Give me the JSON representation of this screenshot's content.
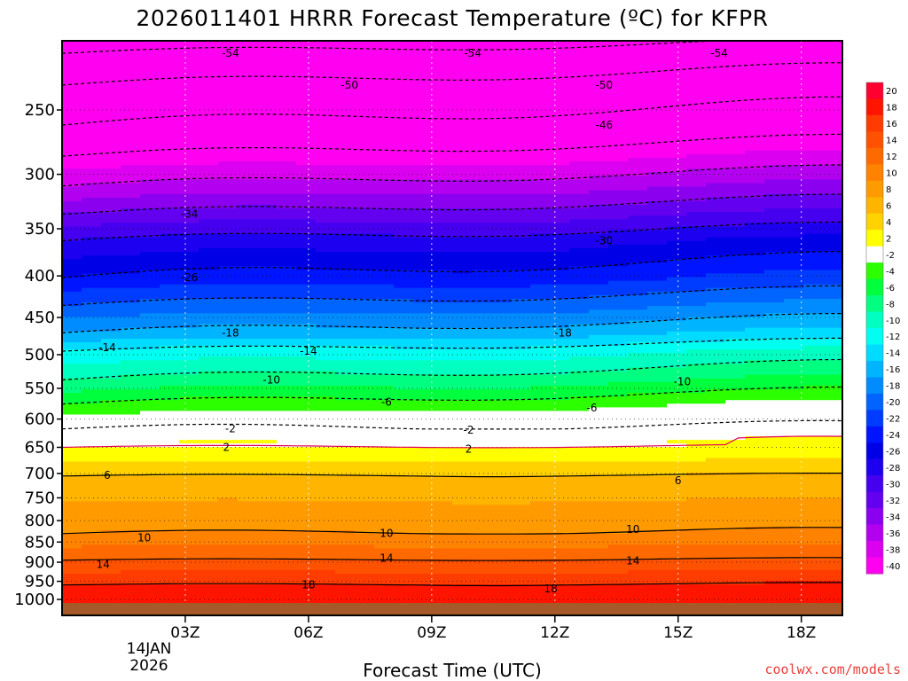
{
  "chart_data": {
    "type": "heatmap",
    "title": "2026011401 HRRR Forecast Temperature (ºC) for KFPR",
    "xlabel": "Forecast Time (UTC)",
    "ylabel": "",
    "x_ticks": [
      "03Z",
      "06Z",
      "09Z",
      "12Z",
      "15Z",
      "18Z"
    ],
    "x_tick_hours": [
      3,
      6,
      9,
      12,
      15,
      18
    ],
    "x_date_label": [
      "14JAN",
      "2026"
    ],
    "xlim_hours": [
      0,
      19
    ],
    "y_ticks": [
      250,
      300,
      350,
      400,
      450,
      500,
      550,
      600,
      650,
      700,
      750,
      800,
      850,
      900,
      950,
      1000
    ],
    "ylim_hPa": [
      1030,
      200
    ],
    "contour_levels": [
      -54,
      -50,
      -46,
      -42,
      -38,
      -34,
      -30,
      -26,
      -22,
      -18,
      -14,
      -10,
      -6,
      -2,
      2,
      6,
      10,
      14,
      18
    ],
    "contour_labels": [
      {
        "value": -54,
        "hour": 4.1,
        "p": 213
      },
      {
        "value": -54,
        "hour": 10.0,
        "p": 213
      },
      {
        "value": -54,
        "hour": 16.0,
        "p": 213
      },
      {
        "value": -50,
        "hour": 7.0,
        "p": 233
      },
      {
        "value": -50,
        "hour": 13.2,
        "p": 233
      },
      {
        "value": -46,
        "hour": 13.2,
        "p": 261
      },
      {
        "value": -34,
        "hour": 3.1,
        "p": 336
      },
      {
        "value": -30,
        "hour": 13.2,
        "p": 362
      },
      {
        "value": -26,
        "hour": 3.1,
        "p": 402
      },
      {
        "value": -18,
        "hour": 4.1,
        "p": 470
      },
      {
        "value": -18,
        "hour": 12.2,
        "p": 470
      },
      {
        "value": -14,
        "hour": 1.1,
        "p": 490
      },
      {
        "value": -14,
        "hour": 6.0,
        "p": 495
      },
      {
        "value": -10,
        "hour": 5.1,
        "p": 537
      },
      {
        "value": -10,
        "hour": 15.1,
        "p": 540
      },
      {
        "value": -6,
        "hour": 7.9,
        "p": 572
      },
      {
        "value": -6,
        "hour": 12.9,
        "p": 581
      },
      {
        "value": -2,
        "hour": 4.1,
        "p": 617
      },
      {
        "value": -2,
        "hour": 9.9,
        "p": 619
      },
      {
        "value": 2,
        "hour": 4.0,
        "p": 650
      },
      {
        "value": 2,
        "hour": 9.9,
        "p": 653
      },
      {
        "value": 6,
        "hour": 1.1,
        "p": 704
      },
      {
        "value": 6,
        "hour": 15.0,
        "p": 714
      },
      {
        "value": 10,
        "hour": 2.0,
        "p": 840
      },
      {
        "value": 10,
        "hour": 7.9,
        "p": 829
      },
      {
        "value": 10,
        "hour": 13.9,
        "p": 820
      },
      {
        "value": 14,
        "hour": 1.0,
        "p": 906
      },
      {
        "value": 14,
        "hour": 7.9,
        "p": 890
      },
      {
        "value": 14,
        "hour": 13.9,
        "p": 897
      },
      {
        "value": 18,
        "hour": 6.0,
        "p": 960
      },
      {
        "value": 18,
        "hour": 11.9,
        "p": 970
      }
    ],
    "colorbar": {
      "labels": [
        "20",
        "18",
        "16",
        "14",
        "12",
        "10",
        "8",
        "6",
        "4",
        "2",
        "-2",
        "-4",
        "-6",
        "-8",
        "-10",
        "-12",
        "-14",
        "-16",
        "-18",
        "-20",
        "-22",
        "-24",
        "-26",
        "-28",
        "-30",
        "-32",
        "-34",
        "-36",
        "-38",
        "-40"
      ],
      "colors": [
        "#ff0030",
        "#ff1400",
        "#ff3c00",
        "#ff5200",
        "#ff6a00",
        "#ff8200",
        "#ff9a00",
        "#ffb400",
        "#ffd200",
        "#ffff00",
        "#ffffff",
        "#2cff00",
        "#00ff3c",
        "#00ff80",
        "#00ffc0",
        "#00fff0",
        "#00dcff",
        "#00b4ff",
        "#008cff",
        "#0064ff",
        "#003cff",
        "#0014ff",
        "#0000e6",
        "#1e00f0",
        "#4600f0",
        "#6400f0",
        "#8c00f0",
        "#b400f0",
        "#dc00f0",
        "#ff00f0"
      ]
    },
    "ground_color": "#a65a2a",
    "background": "#ffffff"
  },
  "credit": "coolwx.com/models"
}
